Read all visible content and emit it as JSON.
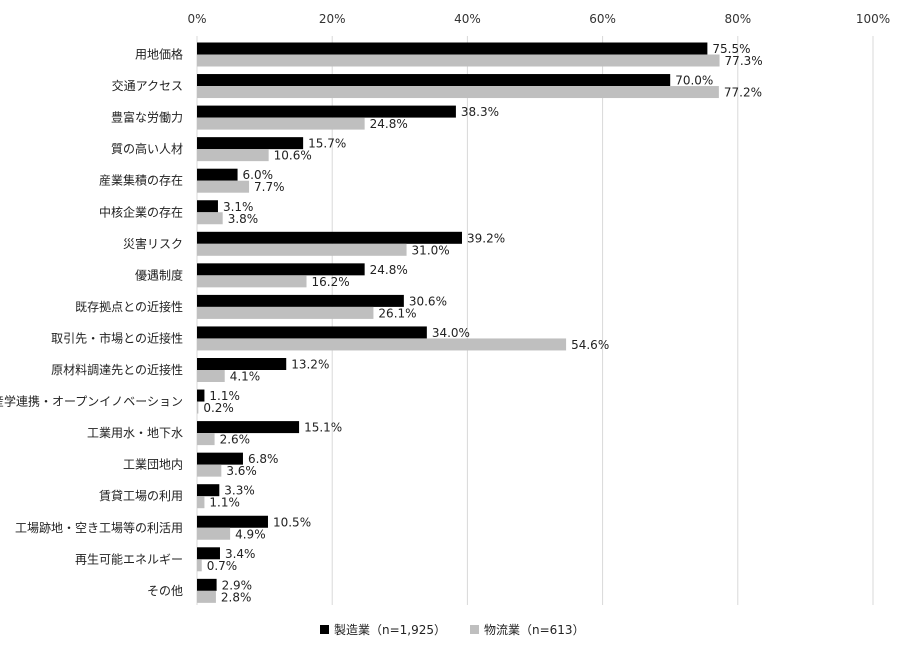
{
  "chart_data": {
    "type": "bar",
    "orientation": "horizontal",
    "title": "",
    "xlabel": "",
    "ylabel": "",
    "xlim": [
      0,
      100
    ],
    "x_ticks": [
      "0%",
      "20%",
      "40%",
      "60%",
      "80%",
      "100%"
    ],
    "x_tick_values": [
      0,
      20,
      40,
      60,
      80,
      100
    ],
    "grid": true,
    "legend_position": "bottom",
    "categories": [
      "用地価格",
      "交通アクセス",
      "豊富な労働力",
      "質の高い人材",
      "産業集積の存在",
      "中核企業の存在",
      "災害リスク",
      "優遇制度",
      "既存拠点との近接性",
      "取引先・市場との近接性",
      "原材料調達先との近接性",
      "産学連携・オープンイノベーション",
      "工業用水・地下水",
      "工業団地内",
      "賃貸工場の利用",
      "工場跡地・空き工場等の利活用",
      "再生可能エネルギー",
      "その他"
    ],
    "series": [
      {
        "name": "製造業（n=1,925）",
        "color": "#000000",
        "values": [
          75.5,
          70.0,
          38.3,
          15.7,
          6.0,
          3.1,
          39.2,
          24.8,
          30.6,
          34.0,
          13.2,
          1.1,
          15.1,
          6.8,
          3.3,
          10.5,
          3.4,
          2.9
        ],
        "labels": [
          "75.5%",
          "70.0%",
          "38.3%",
          "15.7%",
          "6.0%",
          "3.1%",
          "39.2%",
          "24.8%",
          "30.6%",
          "34.0%",
          "13.2%",
          "1.1%",
          "15.1%",
          "6.8%",
          "3.3%",
          "10.5%",
          "3.4%",
          "2.9%"
        ]
      },
      {
        "name": "物流業（n=613）",
        "color": "#bfbfbf",
        "values": [
          77.3,
          77.2,
          24.8,
          10.6,
          7.7,
          3.8,
          31.0,
          16.2,
          26.1,
          54.6,
          4.1,
          0.2,
          2.6,
          3.6,
          1.1,
          4.9,
          0.7,
          2.8
        ],
        "labels": [
          "77.3%",
          "77.2%",
          "24.8%",
          "10.6%",
          "7.7%",
          "3.8%",
          "31.0%",
          "16.2%",
          "26.1%",
          "54.6%",
          "4.1%",
          "0.2%",
          "2.6%",
          "3.6%",
          "1.1%",
          "4.9%",
          "0.7%",
          "2.8%"
        ]
      }
    ]
  }
}
